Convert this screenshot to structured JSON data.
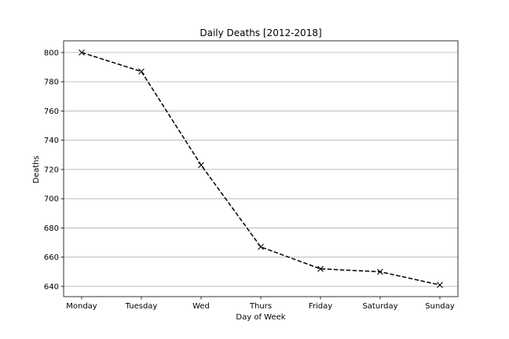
{
  "chart_data": {
    "type": "line",
    "title": "Daily Deaths [2012-2018]",
    "xlabel": "Day of Week",
    "ylabel": "Deaths",
    "categories": [
      "Monday",
      "Tuesday",
      "Wed",
      "Thurs",
      "Friday",
      "Saturday",
      "Sunday"
    ],
    "series": [
      {
        "values": [
          800,
          787,
          723,
          667,
          652,
          650,
          641
        ]
      }
    ],
    "ylim": [
      633,
      808
    ],
    "yticks": [
      640,
      660,
      680,
      700,
      720,
      740,
      760,
      780,
      800
    ],
    "grid": "horizontal",
    "line_color": "#000000",
    "line_style": "dashed",
    "marker": "x",
    "grid_color": "#b0b0b0"
  }
}
